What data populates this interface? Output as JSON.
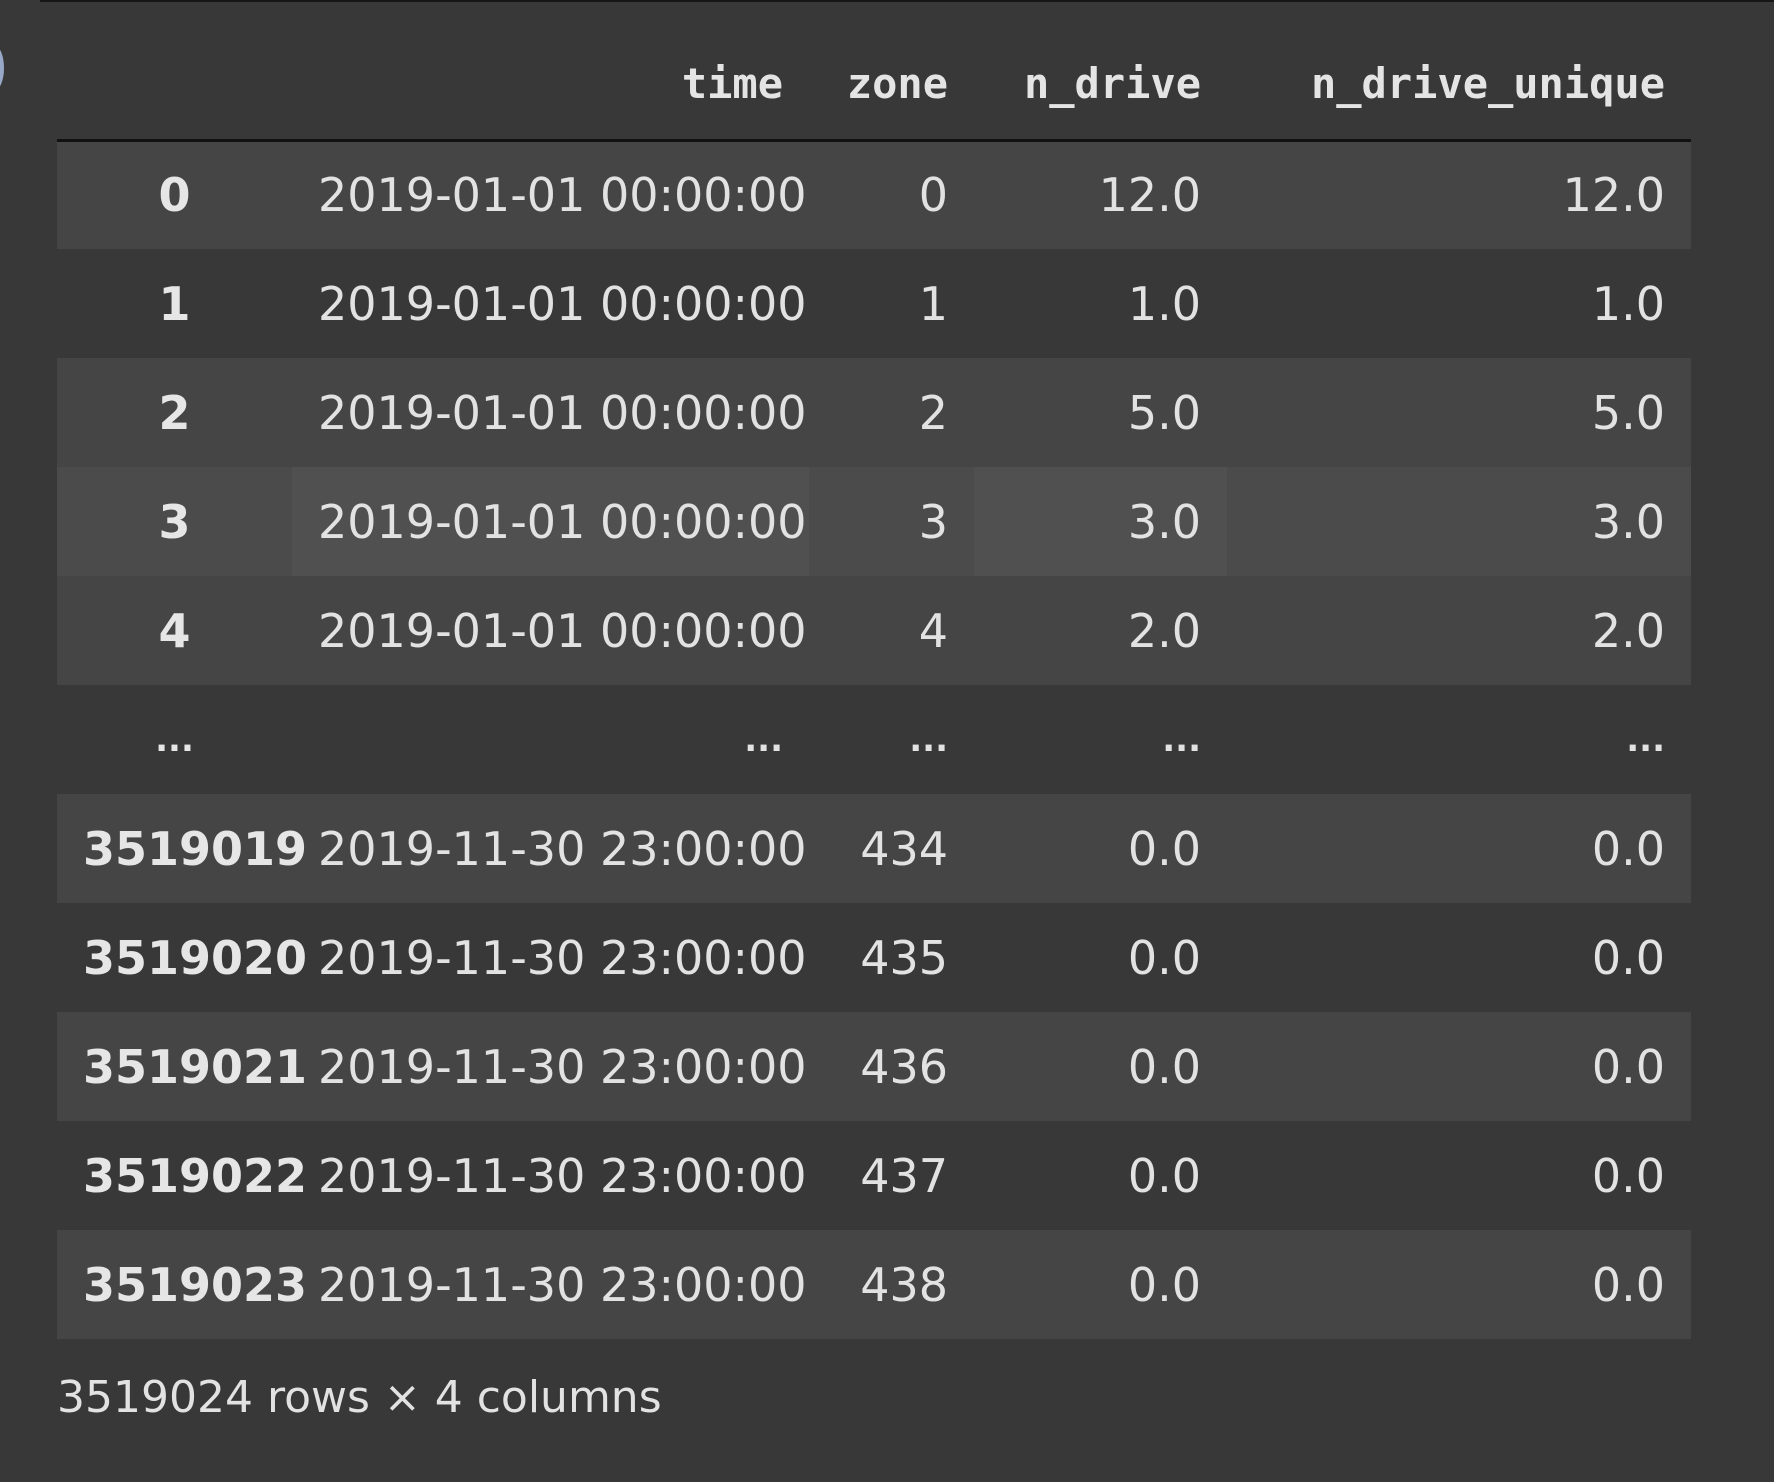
{
  "dataframe": {
    "columns": [
      "",
      "time",
      "zone",
      "n_drive",
      "n_drive_unique"
    ],
    "rows": [
      {
        "index": "0",
        "time": "2019-01-01 00:00:00",
        "zone": "0",
        "n_drive": "12.0",
        "n_drive_unique": "12.0"
      },
      {
        "index": "1",
        "time": "2019-01-01 00:00:00",
        "zone": "1",
        "n_drive": "1.0",
        "n_drive_unique": "1.0"
      },
      {
        "index": "2",
        "time": "2019-01-01 00:00:00",
        "zone": "2",
        "n_drive": "5.0",
        "n_drive_unique": "5.0"
      },
      {
        "index": "3",
        "time": "2019-01-01 00:00:00",
        "zone": "3",
        "n_drive": "3.0",
        "n_drive_unique": "3.0"
      },
      {
        "index": "4",
        "time": "2019-01-01 00:00:00",
        "zone": "4",
        "n_drive": "2.0",
        "n_drive_unique": "2.0"
      },
      {
        "index": "...",
        "time": "...",
        "zone": "...",
        "n_drive": "...",
        "n_drive_unique": "..."
      },
      {
        "index": "3519019",
        "time": "2019-11-30 23:00:00",
        "zone": "434",
        "n_drive": "0.0",
        "n_drive_unique": "0.0"
      },
      {
        "index": "3519020",
        "time": "2019-11-30 23:00:00",
        "zone": "435",
        "n_drive": "0.0",
        "n_drive_unique": "0.0"
      },
      {
        "index": "3519021",
        "time": "2019-11-30 23:00:00",
        "zone": "436",
        "n_drive": "0.0",
        "n_drive_unique": "0.0"
      },
      {
        "index": "3519022",
        "time": "2019-11-30 23:00:00",
        "zone": "437",
        "n_drive": "0.0",
        "n_drive_unique": "0.0"
      },
      {
        "index": "3519023",
        "time": "2019-11-30 23:00:00",
        "zone": "438",
        "n_drive": "0.0",
        "n_drive_unique": "0.0"
      }
    ],
    "footer": "3519024 rows × 4 columns"
  }
}
